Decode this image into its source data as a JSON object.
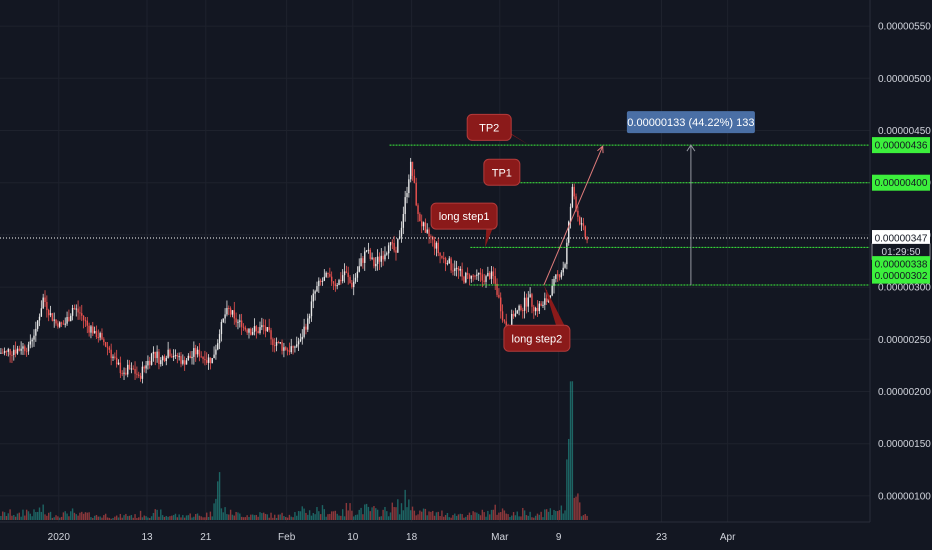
{
  "chart_data": {
    "type": "candlestick",
    "title": "",
    "price_axis": {
      "range": [
        7.5e-07,
        5.75e-06
      ],
      "ticks": [
        "0.00000550",
        "0.00000500",
        "0.00000450",
        "0.00000400",
        "0.00000350",
        "0.00000300",
        "0.00000250",
        "0.00000200",
        "0.00000150",
        "0.00000100"
      ],
      "tick_values": [
        5.5e-06,
        5e-06,
        4.5e-06,
        4e-06,
        3.5e-06,
        3e-06,
        2.5e-06,
        2e-06,
        1.5e-06,
        1e-06
      ]
    },
    "time_axis": {
      "ticks": [
        {
          "label": "2020",
          "date": "2020-01-01"
        },
        {
          "label": "13",
          "date": "2020-01-13"
        },
        {
          "label": "21",
          "date": "2020-01-21"
        },
        {
          "label": "Feb",
          "date": "2020-02-01"
        },
        {
          "label": "10",
          "date": "2020-02-10"
        },
        {
          "label": "18",
          "date": "2020-02-18"
        },
        {
          "label": "Mar",
          "date": "2020-03-01"
        },
        {
          "label": "9",
          "date": "2020-03-09"
        },
        {
          "label": "23",
          "date": "2020-03-23"
        },
        {
          "label": "Apr",
          "date": "2020-04-01"
        }
      ]
    },
    "grid": true,
    "price_tags": [
      {
        "label": "0.00000436",
        "value": 4.36e-06,
        "style": "green"
      },
      {
        "label": "0.00000400",
        "value": 4e-06,
        "style": "green"
      },
      {
        "label": "0.00000347",
        "value": 3.47e-06,
        "style": "white"
      },
      {
        "label": "01:29:50",
        "value": 3.34e-06,
        "style": "countdown"
      },
      {
        "label": "0.00000338",
        "value": 3.22e-06,
        "style": "green"
      },
      {
        "label": "0.00000302",
        "value": 3.11e-06,
        "style": "green"
      }
    ],
    "levels": [
      {
        "name": "TP2",
        "value": 4.36e-06,
        "from": "2020-02-15",
        "to": "2020-04-30",
        "color": "#3cf03c"
      },
      {
        "name": "TP1",
        "value": 4e-06,
        "from": "2020-03-03",
        "to": "2020-04-30",
        "color": "#3cf03c"
      },
      {
        "name": "long step1",
        "value": 3.38e-06,
        "from": "2020-02-26",
        "to": "2020-04-30",
        "color": "#3cf03c"
      },
      {
        "name": "long step2",
        "value": 3.02e-06,
        "from": "2020-02-26",
        "to": "2020-04-30",
        "color": "#3cf03c"
      },
      {
        "name": "last",
        "value": 3.47e-06,
        "from": "2019-12-24",
        "to": "2020-04-30",
        "color": "#ffffff"
      }
    ],
    "callouts": [
      {
        "text": "TP2"
      },
      {
        "text": "TP1"
      },
      {
        "text": "long step1"
      },
      {
        "text": "long step2"
      }
    ],
    "measure_label": "0.00000133 (44.22%) 133",
    "measure": {
      "date": "2020-03-27",
      "from": 3.02e-06,
      "to": 4.36e-06
    },
    "arrow": {
      "from": {
        "date": "2020-03-07",
        "value": 3.02e-06
      },
      "to": {
        "date": "2020-03-15",
        "value": 4.35e-06
      }
    },
    "first_date": "2019-12-24",
    "close": [
      2.37e-06,
      2.38e-06,
      2.4e-06,
      2.41e-06,
      2.45e-06,
      2.6e-06,
      2.9e-06,
      2.75e-06,
      2.62e-06,
      2.65e-06,
      2.8e-06,
      2.75e-06,
      2.63e-06,
      2.58e-06,
      2.5e-06,
      2.4e-06,
      2.26e-06,
      2.18e-06,
      2.22e-06,
      2.15e-06,
      2.25e-06,
      2.38e-06,
      2.3e-06,
      2.4e-06,
      2.35e-06,
      2.3e-06,
      2.32e-06,
      2.4e-06,
      2.3e-06,
      2.32e-06,
      2.55e-06,
      2.8e-06,
      2.7e-06,
      2.62e-06,
      2.6e-06,
      2.58e-06,
      2.62e-06,
      2.5e-06,
      2.47e-06,
      2.4e-06,
      2.42e-06,
      2.5e-06,
      2.7e-06,
      2.96e-06,
      3.06e-06,
      3.1e-06,
      3.02e-06,
      3.15e-06,
      3e-06,
      3.2e-06,
      3.35e-06,
      3.2e-06,
      3.3e-06,
      3.4e-06,
      3.33e-06,
      3.7e-06,
      4.2e-06,
      3.7e-06,
      3.52e-06,
      3.45e-06,
      3.3e-06,
      3.23e-06,
      3.18e-06,
      3.1e-06,
      3.08e-06,
      3.12e-06,
      3.05e-06,
      3.15e-06,
      2.9e-06,
      2.58e-06,
      2.72e-06,
      2.78e-06,
      2.9e-06,
      2.8e-06,
      2.83e-06,
      2.92e-06,
      3.12e-06,
      3.22e-06,
      3.96e-06,
      3.6e-06,
      3.45e-06
    ],
    "volume": [
      8,
      6,
      7,
      5,
      9,
      7,
      10,
      6,
      5,
      6,
      8,
      5,
      6,
      5,
      4,
      5,
      3,
      4,
      5,
      4,
      6,
      5,
      7,
      4,
      5,
      4,
      5,
      5,
      4,
      6,
      40,
      10,
      7,
      6,
      5,
      5,
      6,
      5,
      4,
      5,
      6,
      7,
      9,
      8,
      10,
      8,
      9,
      7,
      12,
      9,
      11,
      10,
      8,
      9,
      12,
      14,
      20,
      10,
      8,
      7,
      6,
      7,
      5,
      6,
      5,
      6,
      7,
      8,
      10,
      9,
      7,
      6,
      8,
      6,
      7,
      9,
      12,
      10,
      90,
      20,
      6
    ]
  }
}
